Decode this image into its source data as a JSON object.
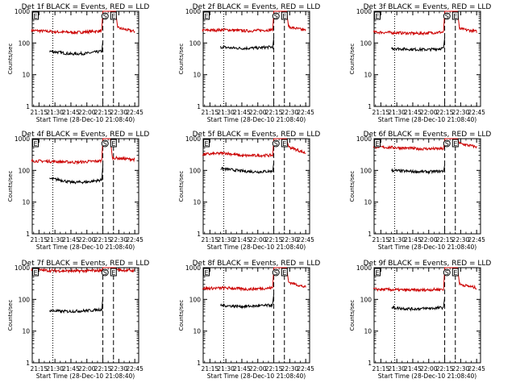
{
  "chart_data": [
    {
      "type": "line",
      "title": "Det 1f BLACK = Events, RED = LLD",
      "ylabel": "Counts/sec",
      "xlabel": "Start Time (28-Dec-10 21:08:40)",
      "x_ticks": [
        "21:15",
        "21:30",
        "21:45",
        "22:00",
        "22:15",
        "22:30",
        "22:45"
      ],
      "y_ticks": [
        "1",
        "10",
        "100",
        "1000"
      ],
      "yscale": "log",
      "ylim": [
        1,
        1000
      ],
      "xlim_minutes_after_start": [
        0,
        100
      ],
      "markers": [
        {
          "label": "E",
          "x": "21:08"
        },
        {
          "label": "S",
          "x": "22:14"
        },
        {
          "label": "E",
          "x": "22:22"
        }
      ],
      "series": [
        {
          "color": "#cc0000",
          "values": [
            {
              "x": "21:08",
              "y": 250
            },
            {
              "x": "21:30",
              "y": 225
            },
            {
              "x": "21:50",
              "y": 215
            },
            {
              "x": "22:14",
              "y": 240
            },
            {
              "x": "22:15",
              "y": 1000
            },
            {
              "x": "22:27",
              "y": 1000
            },
            {
              "x": "22:29",
              "y": 300
            },
            {
              "x": "22:45",
              "y": 230
            }
          ]
        },
        {
          "color": "#000000",
          "values": [
            {
              "x": "21:25",
              "y": 55
            },
            {
              "x": "21:35",
              "y": 50
            },
            {
              "x": "21:45",
              "y": 45
            },
            {
              "x": "22:00",
              "y": 47
            },
            {
              "x": "22:14",
              "y": 55
            },
            {
              "x": "22:15",
              "y": 120
            }
          ]
        }
      ],
      "vlines_dotted": [
        "21:28"
      ],
      "vlines_dashed": [
        "22:15",
        "22:25"
      ]
    },
    {
      "type": "line",
      "title": "Det 2f BLACK = Events, RED = LLD",
      "ylabel": "Counts/sec",
      "xlabel": "Start Time (28-Dec-10 21:08:40)",
      "x_ticks": [
        "21:15",
        "21:30",
        "21:45",
        "22:00",
        "22:15",
        "22:30",
        "22:45"
      ],
      "y_ticks": [
        "1",
        "10",
        "100",
        "1000"
      ],
      "yscale": "log",
      "ylim": [
        1,
        1000
      ],
      "xlim_minutes_after_start": [
        0,
        100
      ],
      "markers": [
        {
          "label": "E",
          "x": "21:08"
        },
        {
          "label": "S",
          "x": "22:14"
        },
        {
          "label": "E",
          "x": "22:22"
        }
      ],
      "series": [
        {
          "color": "#cc0000",
          "values": [
            {
              "x": "21:08",
              "y": 250
            },
            {
              "x": "21:30",
              "y": 260
            },
            {
              "x": "21:50",
              "y": 240
            },
            {
              "x": "22:14",
              "y": 260
            },
            {
              "x": "22:15",
              "y": 1000
            },
            {
              "x": "22:27",
              "y": 1000
            },
            {
              "x": "22:29",
              "y": 320
            },
            {
              "x": "22:45",
              "y": 250
            }
          ]
        },
        {
          "color": "#000000",
          "values": [
            {
              "x": "21:25",
              "y": 75
            },
            {
              "x": "21:35",
              "y": 70
            },
            {
              "x": "21:45",
              "y": 68
            },
            {
              "x": "22:00",
              "y": 70
            },
            {
              "x": "22:14",
              "y": 75
            },
            {
              "x": "22:15",
              "y": 150
            }
          ]
        }
      ],
      "vlines_dotted": [
        "21:28"
      ],
      "vlines_dashed": [
        "22:15",
        "22:25"
      ]
    },
    {
      "type": "line",
      "title": "Det 3f BLACK = Events, RED = LLD",
      "ylabel": "Counts/sec",
      "xlabel": "Start Time (28-Dec-10 21:08:40)",
      "x_ticks": [
        "21:15",
        "21:30",
        "21:45",
        "22:00",
        "22:15",
        "22:30",
        "22:45"
      ],
      "y_ticks": [
        "1",
        "10",
        "100",
        "1000"
      ],
      "yscale": "log",
      "ylim": [
        1,
        1000
      ],
      "xlim_minutes_after_start": [
        0,
        100
      ],
      "markers": [
        {
          "label": "E",
          "x": "21:08"
        },
        {
          "label": "S",
          "x": "22:14"
        },
        {
          "label": "E",
          "x": "22:22"
        }
      ],
      "series": [
        {
          "color": "#cc0000",
          "values": [
            {
              "x": "21:08",
              "y": 220
            },
            {
              "x": "21:30",
              "y": 210
            },
            {
              "x": "21:50",
              "y": 200
            },
            {
              "x": "22:14",
              "y": 220
            },
            {
              "x": "22:15",
              "y": 1000
            },
            {
              "x": "22:27",
              "y": 1000
            },
            {
              "x": "22:29",
              "y": 280
            },
            {
              "x": "22:45",
              "y": 230
            }
          ]
        },
        {
          "color": "#000000",
          "values": [
            {
              "x": "21:25",
              "y": 68
            },
            {
              "x": "21:35",
              "y": 65
            },
            {
              "x": "21:45",
              "y": 63
            },
            {
              "x": "22:00",
              "y": 62
            },
            {
              "x": "22:14",
              "y": 68
            },
            {
              "x": "22:15",
              "y": 150
            }
          ]
        }
      ],
      "vlines_dotted": [
        "21:28"
      ],
      "vlines_dashed": [
        "22:15",
        "22:25"
      ]
    },
    {
      "type": "line",
      "title": "Det 4f BLACK = Events, RED = LLD",
      "ylabel": "Counts/sec",
      "xlabel": "Start Time (28-Dec-10 21:08:40)",
      "x_ticks": [
        "21:15",
        "21:30",
        "21:45",
        "22:00",
        "22:15",
        "22:30",
        "22:45"
      ],
      "y_ticks": [
        "1",
        "10",
        "100",
        "1000"
      ],
      "yscale": "log",
      "ylim": [
        1,
        1000
      ],
      "xlim_minutes_after_start": [
        0,
        100
      ],
      "markers": [
        {
          "label": "E",
          "x": "21:08"
        },
        {
          "label": "S",
          "x": "22:14"
        },
        {
          "label": "E",
          "x": "22:22"
        }
      ],
      "series": [
        {
          "color": "#cc0000",
          "values": [
            {
              "x": "21:08",
              "y": 200
            },
            {
              "x": "21:30",
              "y": 190
            },
            {
              "x": "21:50",
              "y": 180
            },
            {
              "x": "22:14",
              "y": 200
            },
            {
              "x": "22:15",
              "y": 1000
            },
            {
              "x": "22:22",
              "y": 1000
            },
            {
              "x": "22:24",
              "y": 250
            },
            {
              "x": "22:45",
              "y": 220
            }
          ]
        },
        {
          "color": "#000000",
          "values": [
            {
              "x": "21:25",
              "y": 55
            },
            {
              "x": "21:35",
              "y": 50
            },
            {
              "x": "21:45",
              "y": 42
            },
            {
              "x": "22:00",
              "y": 43
            },
            {
              "x": "22:14",
              "y": 50
            },
            {
              "x": "22:15",
              "y": 150
            }
          ]
        }
      ],
      "vlines_dotted": [
        "21:28"
      ],
      "vlines_dashed": [
        "22:15",
        "22:25"
      ]
    },
    {
      "type": "line",
      "title": "Det 5f BLACK = Events, RED = LLD",
      "ylabel": "Counts/sec",
      "xlabel": "Start Time (28-Dec-10 21:08:40)",
      "x_ticks": [
        "21:15",
        "21:30",
        "21:45",
        "22:00",
        "22:15",
        "22:30",
        "22:45"
      ],
      "y_ticks": [
        "1",
        "10",
        "100",
        "1000"
      ],
      "yscale": "log",
      "ylim": [
        1,
        1000
      ],
      "xlim_minutes_after_start": [
        0,
        100
      ],
      "markers": [
        {
          "label": "E",
          "x": "21:08"
        },
        {
          "label": "S",
          "x": "22:14"
        },
        {
          "label": "E",
          "x": "22:22"
        }
      ],
      "series": [
        {
          "color": "#cc0000",
          "values": [
            {
              "x": "21:08",
              "y": 320
            },
            {
              "x": "21:30",
              "y": 350
            },
            {
              "x": "21:45",
              "y": 290
            },
            {
              "x": "22:14",
              "y": 300
            },
            {
              "x": "22:15",
              "y": 1000
            },
            {
              "x": "22:27",
              "y": 1000
            },
            {
              "x": "22:29",
              "y": 550
            },
            {
              "x": "22:45",
              "y": 350
            }
          ]
        },
        {
          "color": "#000000",
          "values": [
            {
              "x": "21:25",
              "y": 115
            },
            {
              "x": "21:35",
              "y": 105
            },
            {
              "x": "21:45",
              "y": 95
            },
            {
              "x": "22:00",
              "y": 90
            },
            {
              "x": "22:14",
              "y": 95
            },
            {
              "x": "22:15",
              "y": 180
            }
          ]
        }
      ],
      "vlines_dotted": [
        "21:28"
      ],
      "vlines_dashed": [
        "22:15",
        "22:25"
      ]
    },
    {
      "type": "line",
      "title": "Det 6f BLACK = Events, RED = LLD",
      "ylabel": "Counts/sec",
      "xlabel": "Start Time (28-Dec-10 21:08:40)",
      "x_ticks": [
        "21:15",
        "21:30",
        "21:45",
        "22:00",
        "22:15",
        "22:30",
        "22:45"
      ],
      "y_ticks": [
        "1",
        "10",
        "100",
        "1000"
      ],
      "yscale": "log",
      "ylim": [
        1,
        1000
      ],
      "xlim_minutes_after_start": [
        0,
        100
      ],
      "markers": [
        {
          "label": "E",
          "x": "21:08"
        },
        {
          "label": "S",
          "x": "22:14"
        },
        {
          "label": "E",
          "x": "22:22"
        }
      ],
      "series": [
        {
          "color": "#cc0000",
          "values": [
            {
              "x": "21:08",
              "y": 550
            },
            {
              "x": "21:30",
              "y": 520
            },
            {
              "x": "21:50",
              "y": 480
            },
            {
              "x": "22:14",
              "y": 480
            },
            {
              "x": "22:15",
              "y": 1000
            },
            {
              "x": "22:27",
              "y": 1000
            },
            {
              "x": "22:29",
              "y": 700
            },
            {
              "x": "22:45",
              "y": 550
            }
          ]
        },
        {
          "color": "#000000",
          "values": [
            {
              "x": "21:25",
              "y": 100
            },
            {
              "x": "21:35",
              "y": 95
            },
            {
              "x": "21:45",
              "y": 92
            },
            {
              "x": "22:00",
              "y": 90
            },
            {
              "x": "22:14",
              "y": 95
            },
            {
              "x": "22:15",
              "y": 150
            }
          ]
        }
      ],
      "vlines_dotted": [
        "21:28"
      ],
      "vlines_dashed": [
        "22:15",
        "22:25"
      ]
    },
    {
      "type": "line",
      "title": "Det 7f BLACK = Events, RED = LLD",
      "ylabel": "Counts/sec",
      "xlabel": "Start Time (28-Dec-10 21:08:40)",
      "x_ticks": [
        "21:15",
        "21:30",
        "21:45",
        "22:00",
        "22:15",
        "22:30",
        "22:45"
      ],
      "y_ticks": [
        "1",
        "10",
        "100",
        "1000"
      ],
      "yscale": "log",
      "ylim": [
        1,
        1000
      ],
      "xlim_minutes_after_start": [
        0,
        100
      ],
      "markers": [
        {
          "label": "E",
          "x": "21:08"
        },
        {
          "label": "S",
          "x": "22:14"
        },
        {
          "label": "E",
          "x": "22:22"
        }
      ],
      "series": [
        {
          "color": "#cc0000",
          "values": [
            {
              "x": "21:08",
              "y": 850
            },
            {
              "x": "21:30",
              "y": 800
            },
            {
              "x": "21:50",
              "y": 780
            },
            {
              "x": "22:14",
              "y": 820
            },
            {
              "x": "22:15",
              "y": 1000
            },
            {
              "x": "22:27",
              "y": 1000
            },
            {
              "x": "22:29",
              "y": 850
            },
            {
              "x": "22:45",
              "y": 800
            }
          ]
        },
        {
          "color": "#000000",
          "values": [
            {
              "x": "21:25",
              "y": 45
            },
            {
              "x": "21:35",
              "y": 42
            },
            {
              "x": "21:45",
              "y": 42
            },
            {
              "x": "22:00",
              "y": 44
            },
            {
              "x": "22:14",
              "y": 48
            },
            {
              "x": "22:15",
              "y": 120
            }
          ]
        }
      ],
      "vlines_dotted": [
        "21:28"
      ],
      "vlines_dashed": [
        "22:15",
        "22:25"
      ]
    },
    {
      "type": "line",
      "title": "Det 8f BLACK = Events, RED = LLD",
      "ylabel": "Counts/sec",
      "xlabel": "Start Time (28-Dec-10 21:08:40)",
      "x_ticks": [
        "21:15",
        "21:30",
        "21:45",
        "22:00",
        "22:15",
        "22:30",
        "22:45"
      ],
      "y_ticks": [
        "1",
        "10",
        "100",
        "1000"
      ],
      "yscale": "log",
      "ylim": [
        1,
        1000
      ],
      "xlim_minutes_after_start": [
        0,
        100
      ],
      "markers": [
        {
          "label": "E",
          "x": "21:08"
        },
        {
          "label": "S",
          "x": "22:14"
        },
        {
          "label": "E",
          "x": "22:22"
        }
      ],
      "series": [
        {
          "color": "#cc0000",
          "values": [
            {
              "x": "21:08",
              "y": 220
            },
            {
              "x": "21:30",
              "y": 230
            },
            {
              "x": "21:50",
              "y": 210
            },
            {
              "x": "22:14",
              "y": 230
            },
            {
              "x": "22:15",
              "y": 1000
            },
            {
              "x": "22:27",
              "y": 1000
            },
            {
              "x": "22:29",
              "y": 350
            },
            {
              "x": "22:45",
              "y": 240
            }
          ]
        },
        {
          "color": "#000000",
          "values": [
            {
              "x": "21:25",
              "y": 65
            },
            {
              "x": "21:35",
              "y": 62
            },
            {
              "x": "21:45",
              "y": 60
            },
            {
              "x": "22:00",
              "y": 62
            },
            {
              "x": "22:14",
              "y": 66
            },
            {
              "x": "22:15",
              "y": 150
            }
          ]
        }
      ],
      "vlines_dotted": [
        "21:28"
      ],
      "vlines_dashed": [
        "22:15",
        "22:25"
      ]
    },
    {
      "type": "line",
      "title": "Det 9f BLACK = Events, RED = LLD",
      "ylabel": "Counts/sec",
      "xlabel": "Start Time (28-Dec-10 21:08:40)",
      "x_ticks": [
        "21:15",
        "21:30",
        "21:45",
        "22:00",
        "22:15",
        "22:30",
        "22:45"
      ],
      "y_ticks": [
        "1",
        "10",
        "100",
        "1000"
      ],
      "yscale": "log",
      "ylim": [
        1,
        1000
      ],
      "xlim_minutes_after_start": [
        0,
        100
      ],
      "markers": [
        {
          "label": "E",
          "x": "21:08"
        },
        {
          "label": "S",
          "x": "22:14"
        },
        {
          "label": "E",
          "x": "22:22"
        }
      ],
      "series": [
        {
          "color": "#cc0000",
          "values": [
            {
              "x": "21:08",
              "y": 210
            },
            {
              "x": "21:30",
              "y": 200
            },
            {
              "x": "21:50",
              "y": 195
            },
            {
              "x": "22:14",
              "y": 210
            },
            {
              "x": "22:15",
              "y": 1000
            },
            {
              "x": "22:27",
              "y": 1000
            },
            {
              "x": "22:29",
              "y": 300
            },
            {
              "x": "22:45",
              "y": 230
            }
          ]
        },
        {
          "color": "#000000",
          "values": [
            {
              "x": "21:25",
              "y": 55
            },
            {
              "x": "21:35",
              "y": 52
            },
            {
              "x": "21:45",
              "y": 50
            },
            {
              "x": "22:00",
              "y": 52
            },
            {
              "x": "22:14",
              "y": 55
            },
            {
              "x": "22:15",
              "y": 120
            }
          ]
        }
      ],
      "vlines_dotted": [
        "21:28"
      ],
      "vlines_dashed": [
        "22:15",
        "22:25"
      ]
    }
  ]
}
